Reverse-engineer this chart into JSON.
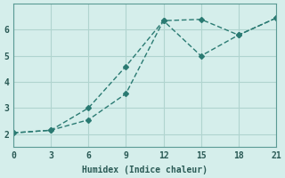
{
  "xlabel": "Humidex (Indice chaleur)",
  "background_color": "#d5eeeb",
  "grid_color": "#b0d4cf",
  "line_color": "#2a7a72",
  "line1_x": [
    0,
    3,
    6,
    9,
    12,
    15,
    18,
    21
  ],
  "line1_y": [
    2.05,
    2.15,
    2.55,
    3.55,
    6.35,
    6.4,
    5.8,
    6.45
  ],
  "line2_x": [
    0,
    3,
    6,
    9,
    12,
    15,
    18,
    21
  ],
  "line2_y": [
    2.05,
    2.15,
    3.0,
    4.6,
    6.35,
    5.0,
    5.8,
    6.45
  ],
  "xlim": [
    0,
    21
  ],
  "ylim": [
    1.5,
    7.0
  ],
  "xticks": [
    0,
    3,
    6,
    9,
    12,
    15,
    18,
    21
  ],
  "yticks": [
    2,
    3,
    4,
    5,
    6
  ],
  "marker": "D",
  "markersize": 3
}
